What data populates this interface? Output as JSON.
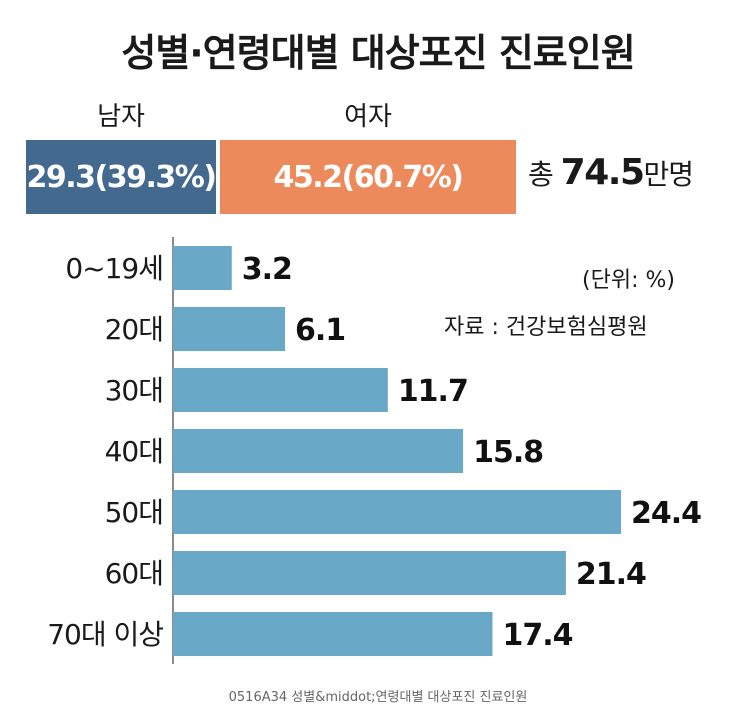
{
  "title": "성별·연령대별 대상포진 진료인원",
  "gender": {
    "male": {
      "label": "남자",
      "value": "29.3(39.3%)",
      "color": "#44698f"
    },
    "female": {
      "label": "여자",
      "value": "45.2(60.7%)",
      "color": "#ec8a5b"
    },
    "total_prefix": "총",
    "total_value": "74.5",
    "total_suffix": "만명"
  },
  "unit_note": "(단위: %)",
  "source_note": "자료 : 건강보험심평원",
  "footer": "0516A34 성별&middot;연령대별 대상포진 진료인원",
  "chart_data": {
    "type": "bar",
    "orientation": "horizontal",
    "categories": [
      "0~19세",
      "20대",
      "30대",
      "40대",
      "50대",
      "60대",
      "70대 이상"
    ],
    "values": [
      3.2,
      6.1,
      11.7,
      15.8,
      24.4,
      21.4,
      17.4
    ],
    "value_labels": [
      "3.2",
      "6.1",
      "11.7",
      "15.8",
      "24.4",
      "21.4",
      "17.4"
    ],
    "bar_color": "#6aa8c8",
    "xlim": [
      0,
      24.4
    ]
  }
}
